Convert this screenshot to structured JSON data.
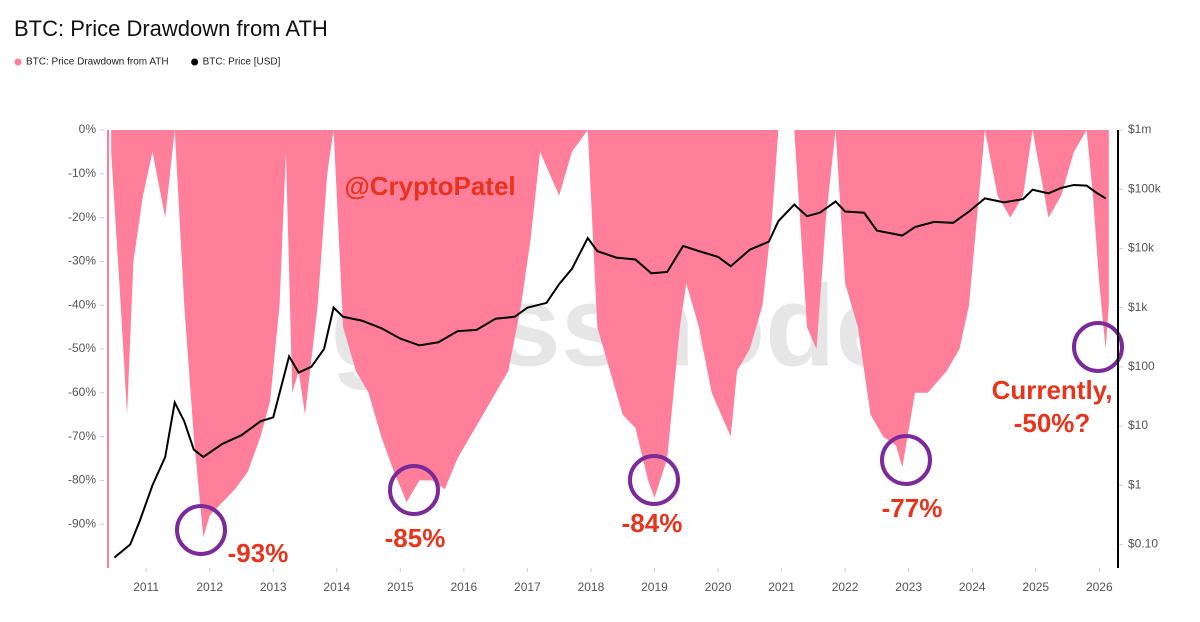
{
  "chart_data": {
    "type": "line",
    "title": "BTC: Price Drawdown from ATH",
    "xlim": [
      2010.4,
      2026.2
    ],
    "xticks": [
      2011,
      2012,
      2013,
      2014,
      2015,
      2016,
      2017,
      2018,
      2019,
      2020,
      2021,
      2022,
      2023,
      2024,
      2025,
      2026
    ],
    "ylim": [
      -100,
      0
    ],
    "yticks": [
      {
        "value": 0,
        "label": "0%"
      },
      {
        "value": -10,
        "label": "-10%"
      },
      {
        "value": -20,
        "label": "-20%"
      },
      {
        "value": -30,
        "label": "-30%"
      },
      {
        "value": -40,
        "label": "-40%"
      },
      {
        "value": -50,
        "label": "-50%"
      },
      {
        "value": -60,
        "label": "-60%"
      },
      {
        "value": -70,
        "label": "-70%"
      },
      {
        "value": -80,
        "label": "-80%"
      },
      {
        "value": -90,
        "label": "-90%"
      }
    ],
    "y2lim": [
      0.04,
      1000000
    ],
    "y2scale": "log",
    "y2ticks": [
      {
        "value": 1000000,
        "label": "$1m"
      },
      {
        "value": 100000,
        "label": "$100k"
      },
      {
        "value": 10000,
        "label": "$10k"
      },
      {
        "value": 1000,
        "label": "$1k"
      },
      {
        "value": 100,
        "label": "$100"
      },
      {
        "value": 10,
        "label": "$10"
      },
      {
        "value": 1,
        "label": "$1"
      },
      {
        "value": 0.1,
        "label": "$0.10"
      }
    ],
    "series": [
      {
        "name": "BTC: Price Drawdown from ATH",
        "type": "area",
        "color": "#ff7f9b",
        "x": [
          2010.45,
          2010.6,
          2010.7,
          2010.8,
          2010.95,
          2011.1,
          2011.3,
          2011.45,
          2011.6,
          2011.75,
          2011.9,
          2012.0,
          2012.2,
          2012.4,
          2012.6,
          2012.8,
          2012.95,
          2013.1,
          2013.2,
          2013.3,
          2013.4,
          2013.5,
          2013.7,
          2013.85,
          2013.95,
          2014.1,
          2014.3,
          2014.5,
          2014.7,
          2014.9,
          2015.1,
          2015.3,
          2015.5,
          2015.7,
          2015.9,
          2016.1,
          2016.3,
          2016.5,
          2016.7,
          2016.9,
          2017.05,
          2017.2,
          2017.5,
          2017.7,
          2017.95,
          2018.1,
          2018.3,
          2018.5,
          2018.7,
          2018.9,
          2019.0,
          2019.2,
          2019.4,
          2019.5,
          2019.7,
          2019.9,
          2020.2,
          2020.3,
          2020.5,
          2020.7,
          2020.85,
          2020.95,
          2021.2,
          2021.4,
          2021.55,
          2021.7,
          2021.85,
          2022.0,
          2022.2,
          2022.4,
          2022.6,
          2022.8,
          2022.9,
          2023.1,
          2023.3,
          2023.6,
          2023.8,
          2023.95,
          2024.2,
          2024.4,
          2024.6,
          2024.8,
          2024.95,
          2025.2,
          2025.4,
          2025.6,
          2025.8,
          2025.9,
          2026.0,
          2026.1,
          2026.15
        ],
        "values": [
          -5,
          -40,
          -65,
          -30,
          -15,
          -5,
          -20,
          0,
          -40,
          -70,
          -93,
          -88,
          -85,
          -82,
          -78,
          -70,
          -62,
          -40,
          -5,
          -60,
          -55,
          -65,
          -40,
          -10,
          0,
          -45,
          -55,
          -60,
          -70,
          -78,
          -85,
          -80,
          -80,
          -82,
          -75,
          -70,
          -65,
          -60,
          -55,
          -40,
          -25,
          -5,
          -15,
          -5,
          0,
          -45,
          -55,
          -65,
          -68,
          -80,
          -84,
          -75,
          -45,
          -35,
          -45,
          -60,
          -70,
          -55,
          -50,
          -40,
          -20,
          0,
          0,
          -45,
          -50,
          -20,
          0,
          -35,
          -45,
          -65,
          -70,
          -72,
          -77,
          -60,
          -60,
          -55,
          -50,
          -40,
          0,
          -15,
          -20,
          -15,
          0,
          -20,
          -15,
          -5,
          0,
          -15,
          -35,
          -50,
          -40
        ]
      },
      {
        "name": "BTC: Price [USD]",
        "type": "line",
        "axis": "y2",
        "color": "#000000",
        "x": [
          2010.5,
          2010.75,
          2010.9,
          2011.1,
          2011.3,
          2011.45,
          2011.6,
          2011.75,
          2011.9,
          2012.2,
          2012.5,
          2012.8,
          2013.0,
          2013.25,
          2013.4,
          2013.6,
          2013.8,
          2013.95,
          2014.1,
          2014.4,
          2014.7,
          2015.0,
          2015.3,
          2015.6,
          2015.9,
          2016.2,
          2016.5,
          2016.8,
          2017.0,
          2017.3,
          2017.5,
          2017.7,
          2017.95,
          2018.1,
          2018.4,
          2018.7,
          2018.95,
          2019.2,
          2019.45,
          2019.7,
          2020.0,
          2020.2,
          2020.5,
          2020.8,
          2020.95,
          2021.2,
          2021.4,
          2021.6,
          2021.85,
          2022.0,
          2022.3,
          2022.5,
          2022.9,
          2023.1,
          2023.4,
          2023.7,
          2023.95,
          2024.2,
          2024.5,
          2024.8,
          2024.95,
          2025.2,
          2025.4,
          2025.6,
          2025.8,
          2025.95,
          2026.1
        ],
        "values": [
          0.06,
          0.1,
          0.25,
          1,
          3,
          25,
          12,
          4,
          3,
          5,
          7,
          12,
          14,
          150,
          80,
          100,
          200,
          1000,
          700,
          600,
          450,
          300,
          230,
          260,
          400,
          420,
          650,
          700,
          1000,
          1200,
          2500,
          4500,
          15000,
          9000,
          7000,
          6500,
          3800,
          4000,
          11000,
          9000,
          7200,
          5000,
          9500,
          13000,
          29000,
          55000,
          35000,
          40000,
          62000,
          42000,
          40000,
          20000,
          16500,
          23000,
          28000,
          27000,
          42000,
          70000,
          60000,
          68000,
          98000,
          85000,
          105000,
          118000,
          115000,
          88000,
          70000
        ]
      }
    ],
    "watermark": "glassnode",
    "annotations": [
      "@CryptoPatel",
      "-93%",
      "-85%",
      "-84%",
      "-77%",
      "Currently,",
      "-50%?"
    ]
  }
}
